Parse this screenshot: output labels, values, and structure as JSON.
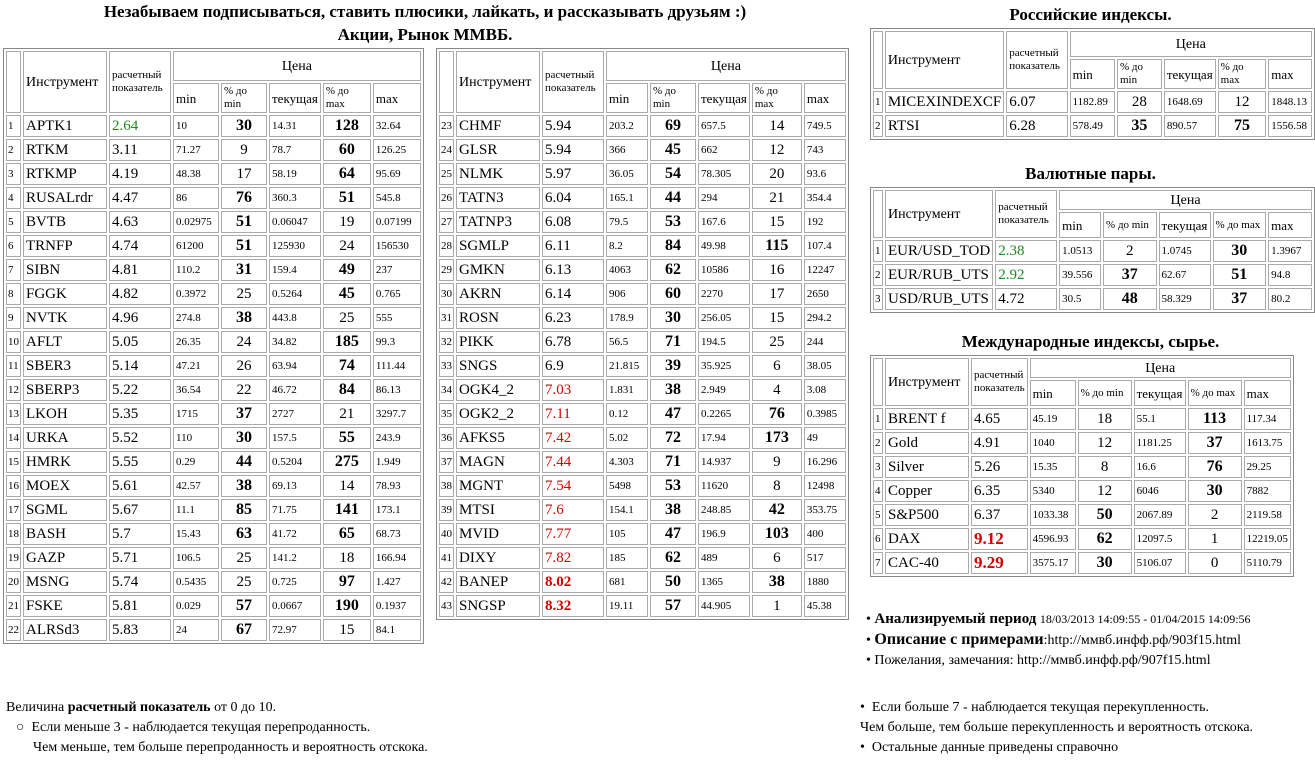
{
  "header": {
    "title": "Незабываем подписываться, ставить плюсики, лайкать, и рассказывать друзьям :)",
    "subtitle": "Акции, Рынок ММВБ."
  },
  "tables": [
    {
      "header": {
        "instrument": "Инструмент",
        "indicator": "расчетный показатель",
        "price": "Цена",
        "min": "min",
        "pct_min": "% до min",
        "current": "текущая",
        "pct_max": "% до max",
        "max": "max"
      },
      "rows": [
        [
          "1",
          "APTK1",
          "2.64",
          "10",
          "30",
          "14.31",
          "128",
          "32.64"
        ],
        [
          "2",
          "RTKM",
          "3.11",
          "71.27",
          "9",
          "78.7",
          "60",
          "126.25"
        ],
        [
          "3",
          "RTKMP",
          "4.19",
          "48.38",
          "17",
          "58.19",
          "64",
          "95.69"
        ],
        [
          "4",
          "RUSALrdr",
          "4.47",
          "86",
          "76",
          "360.3",
          "51",
          "545.8"
        ],
        [
          "5",
          "BVTB",
          "4.63",
          "0.02975",
          "51",
          "0.06047",
          "19",
          "0.07199"
        ],
        [
          "6",
          "TRNFP",
          "4.74",
          "61200",
          "51",
          "125930",
          "24",
          "156530"
        ],
        [
          "7",
          "SIBN",
          "4.81",
          "110.2",
          "31",
          "159.4",
          "49",
          "237"
        ],
        [
          "8",
          "FGGK",
          "4.82",
          "0.3972",
          "25",
          "0.5264",
          "45",
          "0.765"
        ],
        [
          "9",
          "NVTK",
          "4.96",
          "274.8",
          "38",
          "443.8",
          "25",
          "555"
        ],
        [
          "10",
          "AFLT",
          "5.05",
          "26.35",
          "24",
          "34.82",
          "185",
          "99.3"
        ],
        [
          "11",
          "SBER3",
          "5.14",
          "47.21",
          "26",
          "63.94",
          "74",
          "111.44"
        ],
        [
          "12",
          "SBERP3",
          "5.22",
          "36.54",
          "22",
          "46.72",
          "84",
          "86.13"
        ],
        [
          "13",
          "LKOH",
          "5.35",
          "1715",
          "37",
          "2727",
          "21",
          "3297.7"
        ],
        [
          "14",
          "URKA",
          "5.52",
          "110",
          "30",
          "157.5",
          "55",
          "243.9"
        ],
        [
          "15",
          "HMRK",
          "5.55",
          "0.29",
          "44",
          "0.5204",
          "275",
          "1.949"
        ],
        [
          "16",
          "MOEX",
          "5.61",
          "42.57",
          "38",
          "69.13",
          "14",
          "78.93"
        ],
        [
          "17",
          "SGML",
          "5.67",
          "11.1",
          "85",
          "71.75",
          "141",
          "173.1"
        ],
        [
          "18",
          "BASH",
          "5.7",
          "15.43",
          "63",
          "41.72",
          "65",
          "68.73"
        ],
        [
          "19",
          "GAZP",
          "5.71",
          "106.5",
          "25",
          "141.2",
          "18",
          "166.94"
        ],
        [
          "20",
          "MSNG",
          "5.74",
          "0.5435",
          "25",
          "0.725",
          "97",
          "1.427"
        ],
        [
          "21",
          "FSKE",
          "5.81",
          "0.029",
          "57",
          "0.0667",
          "190",
          "0.1937"
        ],
        [
          "22",
          "ALRSd3",
          "5.83",
          "24",
          "67",
          "72.97",
          "15",
          "84.1"
        ]
      ]
    },
    {
      "header": {
        "instrument": "Инструмент",
        "indicator": "расчетный показатель",
        "price": "Цена",
        "min": "min",
        "pct_min": "% до min",
        "current": "текущая",
        "pct_max": "% до max",
        "max": "max"
      },
      "rows": [
        [
          "23",
          "CHMF",
          "5.94",
          "203.2",
          "69",
          "657.5",
          "14",
          "749.5"
        ],
        [
          "24",
          "GLSR",
          "5.94",
          "366",
          "45",
          "662",
          "12",
          "743"
        ],
        [
          "25",
          "NLMK",
          "5.97",
          "36.05",
          "54",
          "78.305",
          "20",
          "93.6"
        ],
        [
          "26",
          "TATN3",
          "6.04",
          "165.1",
          "44",
          "294",
          "21",
          "354.4"
        ],
        [
          "27",
          "TATNP3",
          "6.08",
          "79.5",
          "53",
          "167.6",
          "15",
          "192"
        ],
        [
          "28",
          "SGMLP",
          "6.11",
          "8.2",
          "84",
          "49.98",
          "115",
          "107.4"
        ],
        [
          "29",
          "GMKN",
          "6.13",
          "4063",
          "62",
          "10586",
          "16",
          "12247"
        ],
        [
          "30",
          "AKRN",
          "6.14",
          "906",
          "60",
          "2270",
          "17",
          "2650"
        ],
        [
          "31",
          "ROSN",
          "6.23",
          "178.9",
          "30",
          "256.05",
          "15",
          "294.2"
        ],
        [
          "32",
          "PIKK",
          "6.78",
          "56.5",
          "71",
          "194.5",
          "25",
          "244"
        ],
        [
          "33",
          "SNGS",
          "6.9",
          "21.815",
          "39",
          "35.925",
          "6",
          "38.05"
        ],
        [
          "34",
          "OGK4_2",
          "7.03",
          "1.831",
          "38",
          "2.949",
          "4",
          "3.08"
        ],
        [
          "35",
          "OGK2_2",
          "7.11",
          "0.12",
          "47",
          "0.2265",
          "76",
          "0.3985"
        ],
        [
          "36",
          "AFKS5",
          "7.42",
          "5.02",
          "72",
          "17.94",
          "173",
          "49"
        ],
        [
          "37",
          "MAGN",
          "7.44",
          "4.303",
          "71",
          "14.937",
          "9",
          "16.296"
        ],
        [
          "38",
          "MGNT",
          "7.54",
          "5498",
          "53",
          "11620",
          "8",
          "12498"
        ],
        [
          "39",
          "MTSI",
          "7.6",
          "154.1",
          "38",
          "248.85",
          "42",
          "353.75"
        ],
        [
          "40",
          "MVID",
          "7.77",
          "105",
          "47",
          "196.9",
          "103",
          "400"
        ],
        [
          "41",
          "DIXY",
          "7.82",
          "185",
          "62",
          "489",
          "6",
          "517"
        ],
        [
          "42",
          "BANEP",
          "8.02",
          "681",
          "50",
          "1365",
          "38",
          "1880"
        ],
        [
          "43",
          "SNGSP",
          "8.32",
          "19.11",
          "57",
          "44.905",
          "1",
          "45.38"
        ]
      ]
    },
    {
      "title": "Российские индексы.",
      "header": {
        "instrument": "Инструмент",
        "indicator": "расчетный показатель",
        "price": "Цена",
        "min": "min",
        "pct_min": "% до min",
        "current": "текущая",
        "pct_max": "% до max",
        "max": "max"
      },
      "rows": [
        [
          "1",
          "MICEXINDEXCF",
          "6.07",
          "1182.89",
          "28",
          "1648.69",
          "12",
          "1848.13"
        ],
        [
          "2",
          "RTSI",
          "6.28",
          "578.49",
          "35",
          "890.57",
          "75",
          "1556.58"
        ]
      ]
    },
    {
      "title": "Валютные пары.",
      "header": {
        "instrument": "Инструмент",
        "indicator": "расчетный показатель",
        "price": "Цена",
        "min": "min",
        "pct_min": "% до min",
        "current": "текущая",
        "pct_max": "% до max",
        "max": "max"
      },
      "rows": [
        [
          "1",
          "EUR/USD_TOD",
          "2.38",
          "1.0513",
          "2",
          "1.0745",
          "30",
          "1.3967"
        ],
        [
          "2",
          "EUR/RUB_UTS",
          "2.92",
          "39.556",
          "37",
          "62.67",
          "51",
          "94.8"
        ],
        [
          "3",
          "USD/RUB_UTS",
          "4.72",
          "30.5",
          "48",
          "58.329",
          "37",
          "80.2"
        ]
      ]
    },
    {
      "title": "Международные индексы, сырье.",
      "header": {
        "instrument": "Инструмент",
        "indicator": "расчетный показатель",
        "price": "Цена",
        "min": "min",
        "pct_min": "% до min",
        "current": "текущая",
        "pct_max": "% до max",
        "max": "max"
      },
      "rows": [
        [
          "1",
          "BRENT f",
          "4.65",
          "45.19",
          "18",
          "55.1",
          "113",
          "117.34"
        ],
        [
          "2",
          "Gold",
          "4.91",
          "1040",
          "12",
          "1181.25",
          "37",
          "1613.75"
        ],
        [
          "3",
          "Silver",
          "5.26",
          "15.35",
          "8",
          "16.6",
          "76",
          "29.25"
        ],
        [
          "4",
          "Copper",
          "6.35",
          "5340",
          "12",
          "6046",
          "30",
          "7882"
        ],
        [
          "5",
          "S&P500",
          "6.37",
          "1033.38",
          "50",
          "2067.89",
          "2",
          "2119.58"
        ],
        [
          "6",
          "DAX",
          "9.12",
          "4596.93",
          "62",
          "12097.5",
          "1",
          "12219.05"
        ],
        [
          "7",
          "CAC-40",
          "9.29",
          "3575.17",
          "30",
          "5106.07",
          "0",
          "5110.79"
        ]
      ]
    }
  ],
  "info": {
    "period_label": "Анализируемый период",
    "period": "18/03/2013 14:09:55 - 01/04/2015 14:09:56",
    "description_label": "Описание с примерами",
    "description_url": ":http://ммвб.инфф.рф/903f15.html",
    "feedback": "Пожелания, замечания: http://ммвб.инфф.рф/907f15.html"
  },
  "footer_left": {
    "prefix": "Величина",
    "term": "расчетный показатель",
    "range": "от 0 до 10.",
    "item": "Если меньше 3 - наблюдается текущая перепроданность.",
    "item_cont": "Чем меньше, тем больше перепроданность и вероятность отскока."
  },
  "footer_right": {
    "item": "Если больше 7 - наблюдается текущая перекупленность.",
    "item_cont": "Чем больше, тем больше перекупленность и вероятность отскока.",
    "other": "Остальные данные приведены справочно"
  }
}
